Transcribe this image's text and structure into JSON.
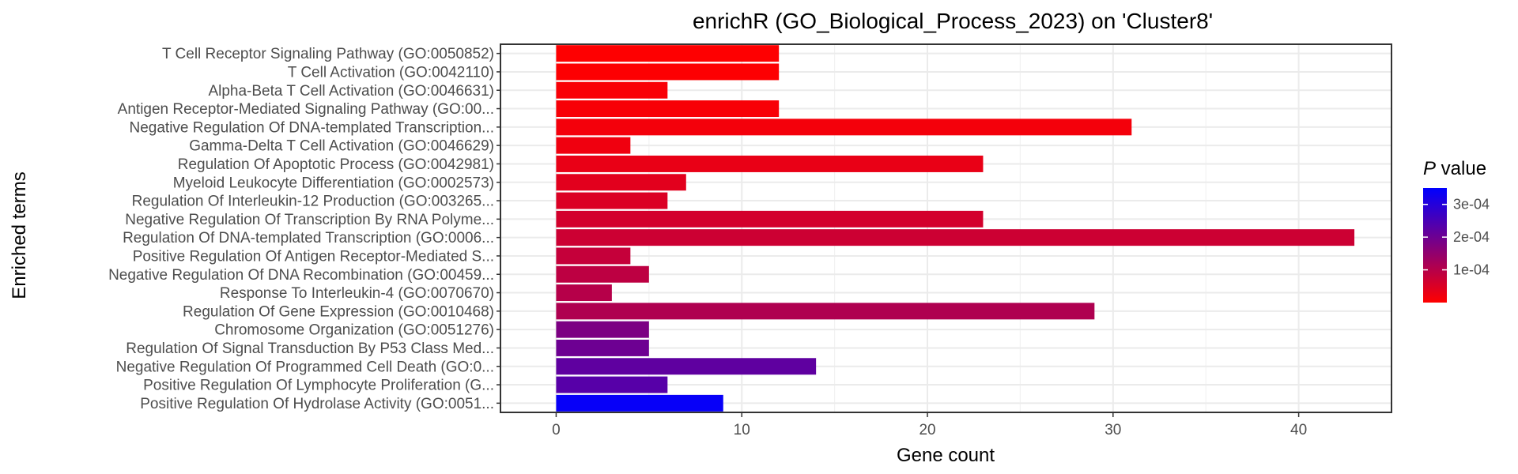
{
  "chart_data": {
    "type": "bar",
    "orientation": "horizontal",
    "title": "enrichR (GO_Biological_Process_2023) on 'Cluster8'",
    "xlabel": "Gene count",
    "ylabel": "Enriched terms",
    "xlim": [
      -3,
      45
    ],
    "xticks": [
      0,
      10,
      20,
      30,
      40
    ],
    "grid": true,
    "categories": [
      "T Cell Receptor Signaling Pathway (GO:0050852)",
      "T Cell Activation (GO:0042110)",
      "Alpha-Beta T Cell Activation (GO:0046631)",
      "Antigen Receptor-Mediated Signaling Pathway (GO:00...",
      "Negative Regulation Of DNA-templated Transcription...",
      "Gamma-Delta T Cell Activation (GO:0046629)",
      "Regulation Of Apoptotic Process (GO:0042981)",
      "Myeloid Leukocyte Differentiation (GO:0002573)",
      "Regulation Of Interleukin-12 Production (GO:003265...",
      "Negative Regulation Of Transcription By RNA Polyme...",
      "Regulation Of DNA-templated Transcription (GO:0006...",
      "Positive Regulation Of Antigen Receptor-Mediated S...",
      "Negative Regulation Of DNA Recombination (GO:00459...",
      "Response To Interleukin-4 (GO:0070670)",
      "Regulation Of Gene Expression (GO:0010468)",
      "Chromosome Organization (GO:0051276)",
      "Regulation Of Signal Transduction By P53 Class Med...",
      "Negative Regulation Of Programmed Cell Death (GO:0...",
      "Positive Regulation Of Lymphocyte Proliferation (G...",
      "Positive Regulation Of Hydrolase Activity (GO:0051..."
    ],
    "values": [
      12,
      12,
      6,
      12,
      31,
      4,
      23,
      7,
      6,
      23,
      43,
      4,
      5,
      3,
      29,
      5,
      5,
      14,
      6,
      9
    ],
    "p_values": [
      2e-06,
      3e-06,
      8e-06,
      1e-05,
      1.5e-05,
      2e-05,
      3e-05,
      4e-05,
      5e-05,
      6e-05,
      7e-05,
      8e-05,
      9e-05,
      0.0001,
      0.00011,
      0.00018,
      0.0002,
      0.00022,
      0.00023,
      0.00034
    ],
    "color_scale": {
      "low_color": "#ff0000",
      "high_color": "#0000ff",
      "min": 0.0,
      "max": 0.00035
    },
    "legend": {
      "title_italic": "P",
      "title_rest": " value",
      "placement": "right",
      "ticks": [
        {
          "value": 0.0001,
          "label": "1e-04"
        },
        {
          "value": 0.0002,
          "label": "2e-04"
        },
        {
          "value": 0.0003,
          "label": "3e-04"
        }
      ]
    }
  }
}
